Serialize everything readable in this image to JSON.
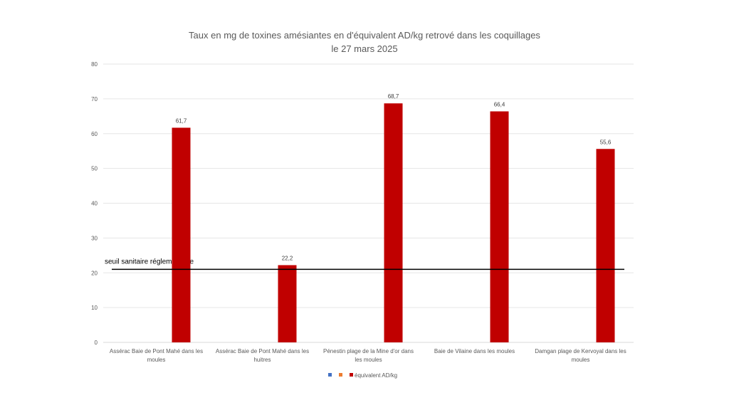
{
  "chart_data": {
    "type": "bar",
    "title": [
      "Taux en mg de toxines amésiantes en d'équivalent AD/kg retrové dans les coquillages",
      "le 27 mars 2025"
    ],
    "categories": [
      [
        "Assérac Baie de Pont Mahé dans les",
        "moules"
      ],
      [
        "Assérac Baie de Pont Mahé dans les",
        "huitres"
      ],
      [
        "Pénestin plage de la Mine d'or dans",
        "les moules"
      ],
      [
        "Baie de Vilaine dans les moules"
      ],
      [
        "Damgan plage de Kervoyal dans les",
        "moules"
      ]
    ],
    "series": [
      {
        "name": "",
        "color": "#4472C4",
        "values": [
          null,
          null,
          null,
          null,
          null
        ]
      },
      {
        "name": "",
        "color": "#ED7D31",
        "values": [
          null,
          null,
          null,
          null,
          null
        ]
      },
      {
        "name": "équivalent AD/kg",
        "color": "#C00000",
        "values": [
          61.7,
          22.2,
          68.7,
          66.4,
          55.6
        ]
      }
    ],
    "data_labels": [
      "61,7",
      "22,2",
      "68,7",
      "66,4",
      "55,6"
    ],
    "ylim": [
      0,
      80
    ],
    "yticks": [
      0,
      10,
      20,
      30,
      40,
      50,
      60,
      70,
      80
    ],
    "grid": true,
    "legend": "bottom",
    "threshold": {
      "label": "seuil sanitaire réglementaire",
      "value": 21,
      "color": "#000000"
    }
  }
}
